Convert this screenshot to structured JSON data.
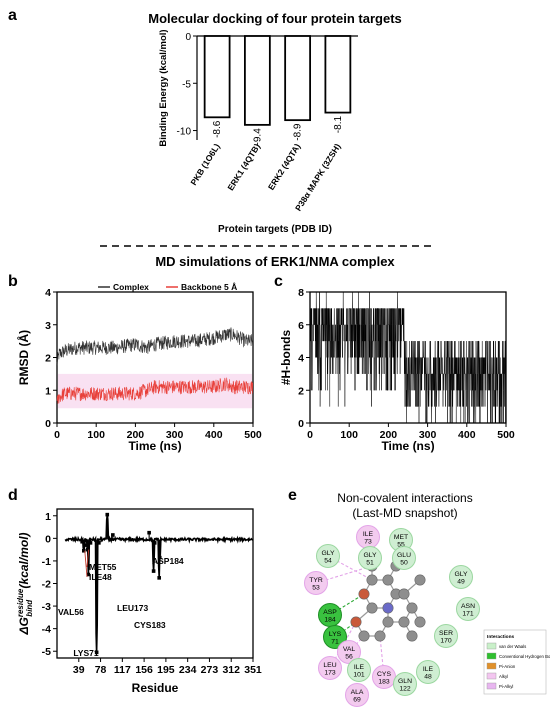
{
  "panels": {
    "a": {
      "letter": "a"
    },
    "b": {
      "letter": "b"
    },
    "c": {
      "letter": "c"
    },
    "d": {
      "letter": "d"
    },
    "e": {
      "letter": "e"
    }
  },
  "section_titles": {
    "md": "MD simulations of ERK1/NMA complex"
  },
  "chart_data": [
    {
      "id": "a",
      "type": "bar",
      "title": "Molecular docking of four protein targets",
      "xlabel": "Protein targets (PDB ID)",
      "ylabel": "Binding Energy (kcal/mol)",
      "categories": [
        "PKB (1O6L)",
        "ERK1 (4QTB)",
        "ERK2 (4QTA)",
        "P38α MAPK (3ZSH)"
      ],
      "values": [
        -8.6,
        -9.4,
        -8.9,
        -8.1
      ],
      "data_labels": [
        "-8.6",
        "-9.4",
        "-8.9",
        "-8.1"
      ],
      "yticks": [
        "0",
        "-5",
        "-10"
      ],
      "ylim": [
        -11,
        0
      ]
    },
    {
      "id": "b",
      "type": "line",
      "xlabel": "Time (ns)",
      "ylabel": "RMSD (Å)",
      "xlim": [
        0,
        500
      ],
      "ylim": [
        0,
        4
      ],
      "xticks": [
        "0",
        "100",
        "200",
        "300",
        "400",
        "500"
      ],
      "yticks": [
        "0",
        "1",
        "2",
        "3",
        "4"
      ],
      "legend_position": "top",
      "series": [
        {
          "name": "Complex",
          "color": "#333333",
          "x": [
            0,
            5,
            20,
            50,
            100,
            150,
            200,
            230,
            250,
            300,
            350,
            400,
            430,
            450,
            480,
            500
          ],
          "y": [
            1.8,
            2.1,
            2.2,
            2.3,
            2.3,
            2.3,
            2.4,
            2.3,
            2.4,
            2.5,
            2.5,
            2.6,
            2.7,
            2.7,
            2.5,
            2.5
          ]
        },
        {
          "name": "Backbone 5 Å",
          "color": "#e8403a",
          "x": [
            0,
            5,
            20,
            50,
            100,
            150,
            200,
            230,
            250,
            300,
            350,
            400,
            430,
            450,
            480,
            500
          ],
          "y": [
            0.6,
            0.8,
            0.9,
            0.9,
            0.9,
            0.9,
            0.9,
            1.0,
            1.1,
            1.1,
            1.1,
            1.1,
            1.2,
            1.1,
            1.1,
            1.1
          ]
        }
      ]
    },
    {
      "id": "c",
      "type": "line",
      "xlabel": "Time (ns)",
      "ylabel": "#H-bonds",
      "xlim": [
        0,
        500
      ],
      "ylim": [
        0,
        8
      ],
      "xticks": [
        "0",
        "100",
        "200",
        "300",
        "400",
        "500"
      ],
      "yticks": [
        "0",
        "2",
        "4",
        "6",
        "8"
      ],
      "series": [
        {
          "name": "",
          "color": "#000000",
          "x": [
            0,
            240,
            241,
            500
          ],
          "y": [
            5,
            5,
            3,
            3
          ]
        }
      ]
    },
    {
      "id": "d",
      "type": "line",
      "xlabel": "Residue",
      "ylabel": "ΔG bind residue (kcal/mol)",
      "ylabel_main": "ΔG",
      "ylabel_sup": "residue",
      "ylabel_sub": "bind",
      "ylabel_unit": " (kcal/mol)",
      "xlim": [
        0,
        351
      ],
      "ylim": [
        -5.3,
        1.3
      ],
      "xticks": [
        "39",
        "78",
        "117",
        "156",
        "195",
        "234",
        "273",
        "312",
        "351"
      ],
      "yticks": [
        "1",
        "0",
        "-1",
        "-2",
        "-3",
        "-4",
        "-5"
      ],
      "series": [
        {
          "name": "",
          "color": "#000000",
          "x": [
            20,
            30,
            40,
            45,
            48,
            50,
            55,
            56,
            60,
            65,
            71,
            75,
            80,
            85,
            90,
            95,
            100,
            105,
            110,
            120,
            130,
            140,
            150,
            160,
            165,
            170,
            173,
            175,
            180,
            183,
            184,
            190,
            200,
            250,
            300,
            351
          ],
          "y": [
            -0.05,
            -0.05,
            -0.05,
            -0.15,
            -0.55,
            -0.3,
            -0.5,
            -1.6,
            -0.2,
            -0.1,
            -5.05,
            -0.2,
            0.05,
            -0.1,
            1.05,
            0.0,
            0.15,
            -0.05,
            0.0,
            0.1,
            -0.05,
            0.1,
            0.0,
            -0.05,
            0.25,
            -0.1,
            -1.45,
            -0.2,
            -0.1,
            -1.75,
            -0.85,
            -0.05,
            -0.05,
            -0.05,
            -0.05,
            -0.05
          ]
        }
      ],
      "annotations": [
        {
          "label": "ASP184",
          "x": 184,
          "y": -0.85
        },
        {
          "label": "MET55",
          "x": 55,
          "y": -0.5
        },
        {
          "label": "ILE48",
          "x": 48,
          "y": -0.55
        },
        {
          "label": "LEU173",
          "x": 173,
          "y": -1.45
        },
        {
          "label": "CYS183",
          "x": 183,
          "y": -1.75
        },
        {
          "label": "VAL56",
          "x": 56,
          "y": -1.6
        },
        {
          "label": "LYS71",
          "x": 71,
          "y": -5.05
        }
      ]
    }
  ],
  "interaction_diagram": {
    "title_line1": "Non-covalent interactions",
    "title_line2": "(Last-MD snapshot)",
    "residues": [
      {
        "name": "ILE",
        "num": "73",
        "kind": "alkyl"
      },
      {
        "name": "MET",
        "num": "55",
        "kind": "vdw"
      },
      {
        "name": "GLY",
        "num": "54",
        "kind": "vdw"
      },
      {
        "name": "GLY",
        "num": "51",
        "kind": "vdw"
      },
      {
        "name": "GLU",
        "num": "50",
        "kind": "vdw"
      },
      {
        "name": "TYR",
        "num": "53",
        "kind": "alkyl"
      },
      {
        "name": "GLY",
        "num": "49",
        "kind": "vdw"
      },
      {
        "name": "ASP",
        "num": "184",
        "kind": "hbond"
      },
      {
        "name": "ASN",
        "num": "171",
        "kind": "vdw"
      },
      {
        "name": "LYS",
        "num": "71",
        "kind": "hbond"
      },
      {
        "name": "SER",
        "num": "170",
        "kind": "vdw"
      },
      {
        "name": "VAL",
        "num": "56",
        "kind": "alkyl"
      },
      {
        "name": "LEU",
        "num": "173",
        "kind": "alkyl"
      },
      {
        "name": "ILE",
        "num": "101",
        "kind": "vdw"
      },
      {
        "name": "CYS",
        "num": "183",
        "kind": "alkyl"
      },
      {
        "name": "GLN",
        "num": "122",
        "kind": "vdw"
      },
      {
        "name": "ILE",
        "num": "48",
        "kind": "vdw"
      },
      {
        "name": "ALA",
        "num": "69",
        "kind": "alkyl"
      }
    ],
    "legend_title": "Interactions",
    "legend": [
      {
        "label": "van der Waals",
        "color": "#c9f0c9"
      },
      {
        "label": "Conventional Hydrogen Bond",
        "color": "#2fbf2f"
      },
      {
        "label": "Pi-Anion",
        "color": "#e0902a"
      },
      {
        "label": "Alkyl",
        "color": "#f3c6f0"
      },
      {
        "label": "Pi-Alkyl",
        "color": "#e8b6f0"
      }
    ]
  }
}
